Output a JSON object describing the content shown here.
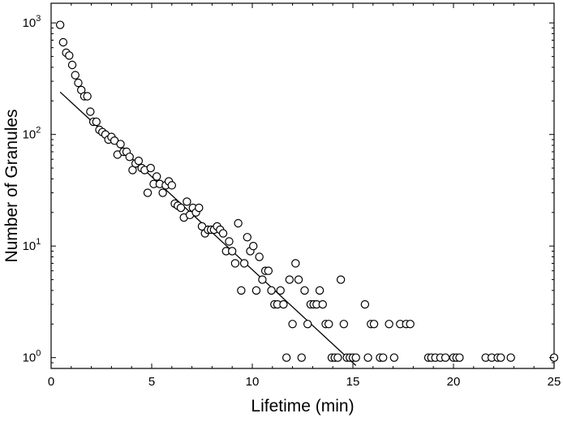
{
  "chart_data": {
    "type": "scatter",
    "title": "",
    "xlabel": "Lifetime (min)",
    "ylabel": "Number of Granules",
    "xlim": [
      0,
      25
    ],
    "ylim": [
      0.8,
      1500
    ],
    "yscale": "log",
    "grid": false,
    "legend": "none",
    "x_ticks": [
      {
        "value": 0,
        "label": "0"
      },
      {
        "value": 5,
        "label": "5"
      },
      {
        "value": 10,
        "label": "10"
      },
      {
        "value": 15,
        "label": "15"
      },
      {
        "value": 20,
        "label": "20"
      },
      {
        "value": 25,
        "label": "25"
      }
    ],
    "y_ticks": [
      {
        "value": 1,
        "base": "10",
        "exp": "0"
      },
      {
        "value": 10,
        "base": "10",
        "exp": "1"
      },
      {
        "value": 100,
        "base": "10",
        "exp": "2"
      },
      {
        "value": 1000,
        "base": "10",
        "exp": "3"
      }
    ],
    "series": [
      {
        "type": "scatter",
        "marker": "open-circle",
        "color": "#000000",
        "x": [
          0.45,
          0.6,
          0.75,
          0.9,
          1.05,
          1.2,
          1.35,
          1.5,
          1.65,
          1.8,
          1.95,
          2.1,
          2.25,
          2.4,
          2.55,
          2.7,
          2.85,
          3.0,
          3.15,
          3.3,
          3.45,
          3.6,
          3.75,
          3.9,
          4.05,
          4.2,
          4.35,
          4.5,
          4.65,
          4.8,
          4.95,
          5.1,
          5.25,
          5.4,
          5.55,
          5.7,
          5.85,
          6.0,
          6.15,
          6.3,
          6.45,
          6.6,
          6.75,
          6.9,
          7.05,
          7.2,
          7.35,
          7.5,
          7.65,
          7.8,
          7.95,
          8.1,
          8.25,
          8.4,
          8.55,
          8.7,
          8.85,
          9.0,
          9.15,
          9.3,
          9.45,
          9.6,
          9.75,
          9.9,
          10.05,
          10.2,
          10.35,
          10.5,
          10.65,
          10.8,
          10.95,
          11.1,
          11.25,
          11.4,
          11.55,
          11.7,
          11.85,
          12.0,
          12.15,
          12.3,
          12.45,
          12.6,
          12.75,
          12.9,
          13.05,
          13.2,
          13.35,
          13.5,
          13.65,
          13.8,
          13.95,
          14.1,
          14.25,
          14.4,
          14.55,
          14.7,
          14.85,
          15.0,
          15.15,
          15.6,
          15.75,
          15.9,
          16.05,
          16.35,
          16.5,
          16.8,
          17.05,
          17.35,
          17.65,
          17.85,
          18.75,
          18.9,
          19.1,
          19.35,
          19.6,
          20.0,
          20.15,
          20.3,
          21.6,
          21.9,
          22.2,
          22.35,
          22.85,
          25.0
        ],
        "y": [
          960,
          670,
          540,
          510,
          420,
          340,
          290,
          250,
          220,
          220,
          160,
          130,
          130,
          110,
          105,
          100,
          90,
          95,
          88,
          66,
          82,
          70,
          70,
          63,
          48,
          55,
          58,
          50,
          48,
          30,
          50,
          36,
          42,
          36,
          30,
          35,
          38,
          35,
          24,
          23,
          22,
          18,
          25,
          19,
          22,
          20,
          22,
          15,
          13,
          14,
          14,
          14,
          15,
          14,
          13,
          9,
          11,
          9,
          7,
          16,
          4,
          7,
          12,
          9,
          10,
          4,
          8,
          5,
          6,
          6,
          4,
          3,
          3,
          4,
          3,
          1,
          5,
          2,
          7,
          5,
          1,
          4,
          2,
          3,
          3,
          3,
          4,
          3,
          2,
          2,
          1,
          1,
          1,
          5,
          2,
          1,
          1,
          1,
          1,
          3,
          1,
          2,
          2,
          1,
          1,
          2,
          1,
          2,
          2,
          2,
          1,
          1,
          1,
          1,
          1,
          1,
          1,
          1,
          1,
          1,
          1,
          1,
          1,
          1
        ]
      },
      {
        "type": "line",
        "role": "exponential fit",
        "color": "#000000",
        "x": [
          0.45,
          15.15
        ],
        "y": [
          240,
          0.85
        ]
      }
    ]
  }
}
